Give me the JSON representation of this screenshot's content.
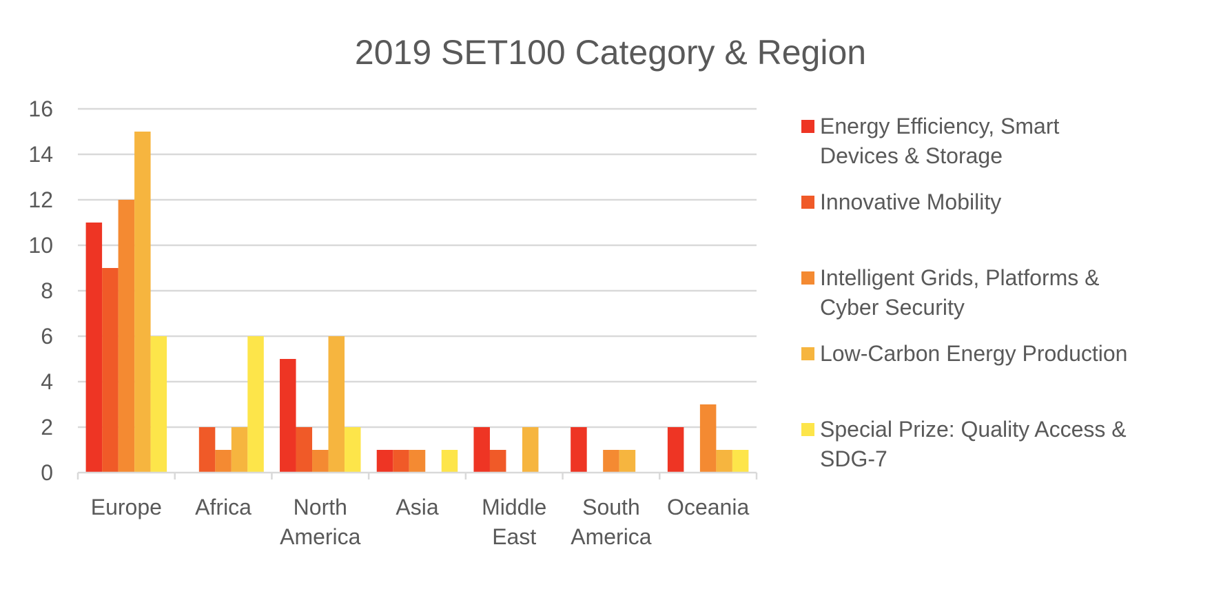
{
  "chart_data": {
    "type": "bar",
    "title": "2019 SET100 Category & Region",
    "xlabel": "",
    "ylabel": "",
    "ylim": [
      0,
      16
    ],
    "yticks": [
      0,
      2,
      4,
      6,
      8,
      10,
      12,
      14,
      16
    ],
    "grid": true,
    "legend_position": "right",
    "categories": [
      [
        "Europe"
      ],
      [
        "Africa"
      ],
      [
        "North",
        "America"
      ],
      [
        "Asia"
      ],
      [
        "Middle",
        "East"
      ],
      [
        "South",
        "America"
      ],
      [
        "Oceania"
      ]
    ],
    "series": [
      {
        "name": [
          "Energy Efficiency, Smart",
          "Devices & Storage"
        ],
        "color": "#ee3524",
        "values": [
          11,
          0,
          5,
          1,
          2,
          2,
          2
        ]
      },
      {
        "name": [
          "Innovative Mobility"
        ],
        "color": "#f05a28",
        "values": [
          9,
          2,
          2,
          1,
          1,
          0,
          0
        ]
      },
      {
        "name": [
          "Intelligent Grids, Platforms &",
          "Cyber Security"
        ],
        "color": "#f48a32",
        "values": [
          12,
          1,
          1,
          1,
          0,
          1,
          3
        ]
      },
      {
        "name": [
          "Low-Carbon Energy Production"
        ],
        "color": "#f6b53f",
        "values": [
          15,
          2,
          6,
          0,
          2,
          1,
          1
        ]
      },
      {
        "name": [
          "Special Prize: Quality Access &",
          "SDG-7"
        ],
        "color": "#fde54a",
        "values": [
          6,
          6,
          2,
          1,
          0,
          0,
          1
        ]
      }
    ]
  }
}
